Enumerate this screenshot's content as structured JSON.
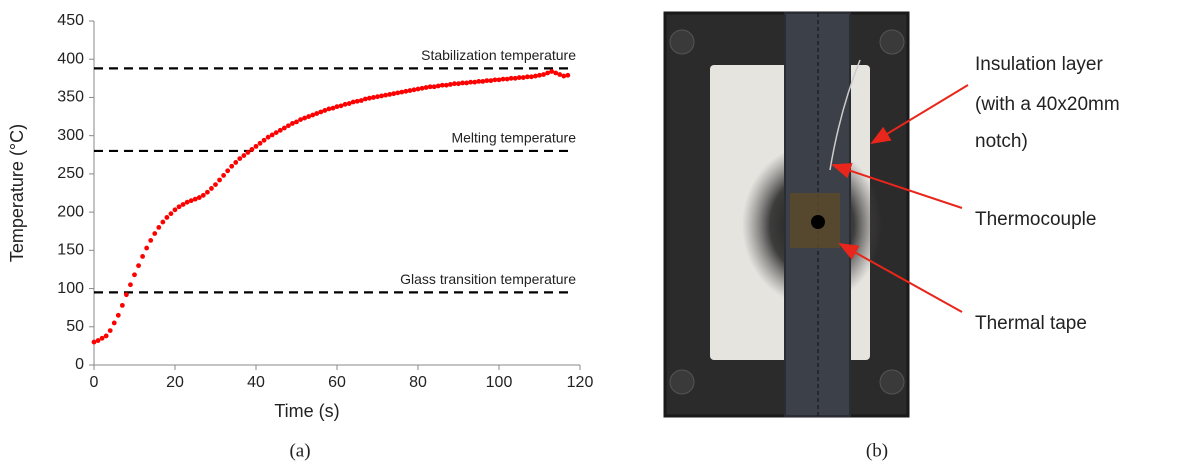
{
  "chart_data": {
    "type": "scatter",
    "x_label": "Time (s)",
    "y_label": "Temperature (°C)",
    "x": [
      0,
      1,
      2,
      3,
      4,
      5,
      6,
      7,
      8,
      9,
      10,
      11,
      12,
      13,
      14,
      15,
      16,
      17,
      18,
      19,
      20,
      21,
      22,
      23,
      24,
      25,
      26,
      27,
      28,
      29,
      30,
      31,
      32,
      33,
      34,
      35,
      36,
      37,
      38,
      39,
      40,
      41,
      42,
      43,
      44,
      45,
      46,
      47,
      48,
      49,
      50,
      51,
      52,
      53,
      54,
      55,
      56,
      57,
      58,
      59,
      60,
      61,
      62,
      63,
      64,
      65,
      66,
      67,
      68,
      69,
      70,
      71,
      72,
      73,
      74,
      75,
      76,
      77,
      78,
      79,
      80,
      81,
      82,
      83,
      84,
      85,
      86,
      87,
      88,
      89,
      90,
      91,
      92,
      93,
      94,
      95,
      96,
      97,
      98,
      99,
      100,
      101,
      102,
      103,
      104,
      105,
      106,
      107,
      108,
      109,
      110,
      111,
      112,
      113,
      114,
      115,
      116,
      117
    ],
    "values": [
      30,
      32,
      35,
      38,
      45,
      55,
      65,
      78,
      92,
      105,
      118,
      130,
      142,
      153,
      163,
      172,
      180,
      187,
      193,
      198,
      203,
      207,
      210,
      213,
      215,
      217,
      219,
      222,
      226,
      231,
      236,
      242,
      248,
      254,
      260,
      265,
      270,
      274,
      278,
      282,
      286,
      290,
      294,
      298,
      301,
      304,
      307,
      310,
      313,
      316,
      318,
      321,
      323,
      325,
      327,
      329,
      331,
      333,
      335,
      336,
      338,
      339,
      341,
      342,
      344,
      345,
      346,
      348,
      349,
      350,
      351,
      352,
      353,
      354,
      355,
      356,
      357,
      358,
      359,
      360,
      361,
      362,
      363,
      364,
      364,
      365,
      366,
      366,
      367,
      368,
      368,
      369,
      369,
      370,
      370,
      371,
      371,
      372,
      372,
      373,
      373,
      374,
      374,
      375,
      375,
      376,
      376,
      377,
      377,
      378,
      379,
      380,
      382,
      384,
      382,
      380,
      378,
      379
    ],
    "color": "#ff0000",
    "reference_lines": [
      {
        "value": 388,
        "label": "Stabilization temperature"
      },
      {
        "value": 280,
        "label": "Melting temperature"
      },
      {
        "value": 95,
        "label": "Glass transition temperature"
      }
    ],
    "xlim": [
      0,
      120
    ],
    "xticks": [
      0,
      20,
      40,
      60,
      80,
      100,
      120
    ],
    "ylim": [
      0,
      450
    ],
    "yticks": [
      0,
      50,
      100,
      150,
      200,
      250,
      300,
      350,
      400,
      450
    ],
    "grid": false
  },
  "photo": {
    "labels": [
      "Insulation layer",
      "(with a 40x20mm",
      "notch)",
      "Thermocouple",
      "Thermal tape"
    ]
  },
  "captions": [
    "(a)",
    "(b)"
  ]
}
